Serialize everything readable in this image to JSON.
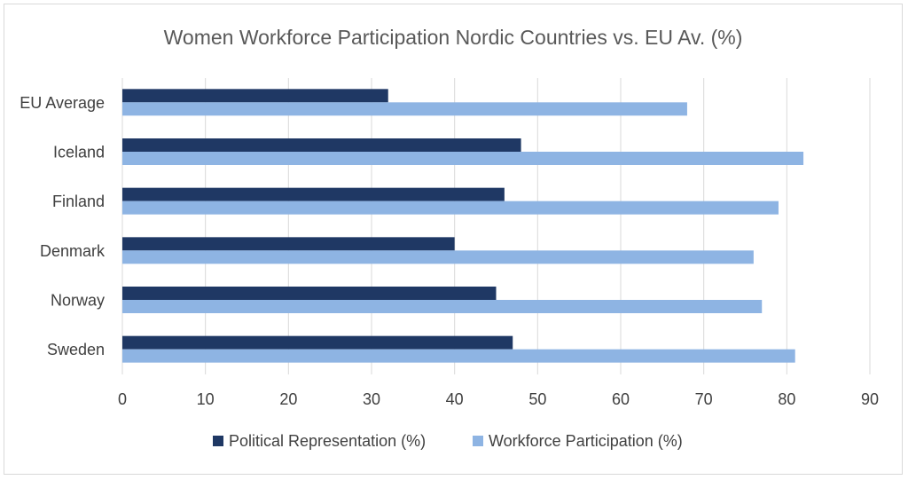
{
  "chart_data": {
    "type": "bar",
    "orientation": "horizontal",
    "title": "Women Workforce Participation Nordic Countries vs. EU Av. (%)",
    "categories": [
      "EU Average",
      "Iceland",
      "Finland",
      "Denmark",
      "Norway",
      "Sweden"
    ],
    "series": [
      {
        "name": "Political Representation (%)",
        "color": "#1f3864",
        "values": [
          32,
          48,
          46,
          40,
          45,
          47
        ]
      },
      {
        "name": "Workforce Participation (%)",
        "color": "#8eb4e3",
        "values": [
          68,
          82,
          79,
          76,
          77,
          81
        ]
      }
    ],
    "xlim": [
      0,
      90
    ],
    "xticks": [
      0,
      10,
      20,
      30,
      40,
      50,
      60,
      70,
      80,
      90
    ],
    "grid": true,
    "legend": "bottom",
    "gridColor": "#d9d9d9"
  }
}
